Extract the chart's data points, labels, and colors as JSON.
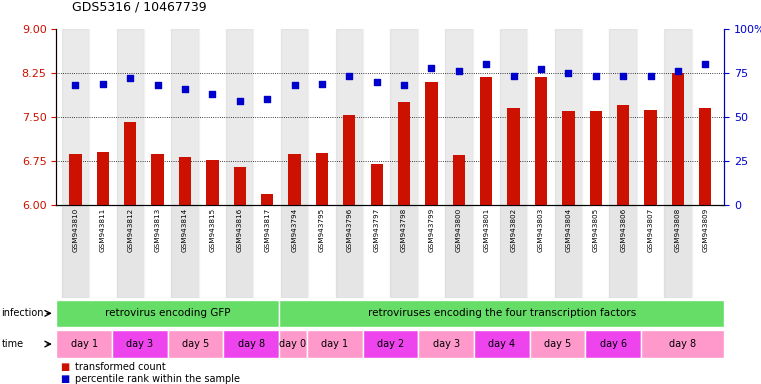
{
  "title": "GDS5316 / 10467739",
  "samples": [
    "GSM943810",
    "GSM943811",
    "GSM943812",
    "GSM943813",
    "GSM943814",
    "GSM943815",
    "GSM943816",
    "GSM943817",
    "GSM943794",
    "GSM943795",
    "GSM943796",
    "GSM943797",
    "GSM943798",
    "GSM943799",
    "GSM943800",
    "GSM943801",
    "GSM943802",
    "GSM943803",
    "GSM943804",
    "GSM943805",
    "GSM943806",
    "GSM943807",
    "GSM943808",
    "GSM943809"
  ],
  "transformed_count": [
    6.88,
    6.9,
    7.42,
    6.88,
    6.83,
    6.78,
    6.65,
    6.2,
    6.88,
    6.89,
    7.54,
    6.7,
    7.76,
    8.1,
    6.86,
    8.18,
    7.65,
    8.18,
    7.6,
    7.6,
    7.7,
    7.62,
    8.25,
    7.65
  ],
  "percentile_rank": [
    68,
    69,
    72,
    68,
    66,
    63,
    59,
    60,
    68,
    69,
    73,
    70,
    68,
    78,
    76,
    80,
    73,
    77,
    75,
    73,
    73,
    73,
    76,
    80
  ],
  "ylim_left": [
    6,
    9
  ],
  "ylim_right": [
    0,
    100
  ],
  "yticks_left": [
    6,
    6.75,
    7.5,
    8.25,
    9
  ],
  "yticks_right": [
    0,
    25,
    50,
    75,
    100
  ],
  "bar_color": "#CC1100",
  "dot_color": "#0000CC",
  "infection_grp1_label": "retrovirus encoding GFP",
  "infection_grp2_label": "retroviruses encoding the four transcription factors",
  "infection_color": "#66DD66",
  "time_defs": [
    {
      "s": 0,
      "e": 2,
      "label": "day 1",
      "color": "#FF99CC"
    },
    {
      "s": 2,
      "e": 4,
      "label": "day 3",
      "color": "#EE44EE"
    },
    {
      "s": 4,
      "e": 6,
      "label": "day 5",
      "color": "#FF99CC"
    },
    {
      "s": 6,
      "e": 8,
      "label": "day 8",
      "color": "#EE44EE"
    },
    {
      "s": 8,
      "e": 9,
      "label": "day 0",
      "color": "#FF99CC"
    },
    {
      "s": 9,
      "e": 11,
      "label": "day 1",
      "color": "#FF99CC"
    },
    {
      "s": 11,
      "e": 13,
      "label": "day 2",
      "color": "#EE44EE"
    },
    {
      "s": 13,
      "e": 15,
      "label": "day 3",
      "color": "#FF99CC"
    },
    {
      "s": 15,
      "e": 17,
      "label": "day 4",
      "color": "#EE44EE"
    },
    {
      "s": 17,
      "e": 19,
      "label": "day 5",
      "color": "#FF99CC"
    },
    {
      "s": 19,
      "e": 21,
      "label": "day 6",
      "color": "#EE44EE"
    },
    {
      "s": 21,
      "e": 24,
      "label": "day 8",
      "color": "#FF99CC"
    }
  ],
  "legend_bar_label": "transformed count",
  "legend_dot_label": "percentile rank within the sample"
}
